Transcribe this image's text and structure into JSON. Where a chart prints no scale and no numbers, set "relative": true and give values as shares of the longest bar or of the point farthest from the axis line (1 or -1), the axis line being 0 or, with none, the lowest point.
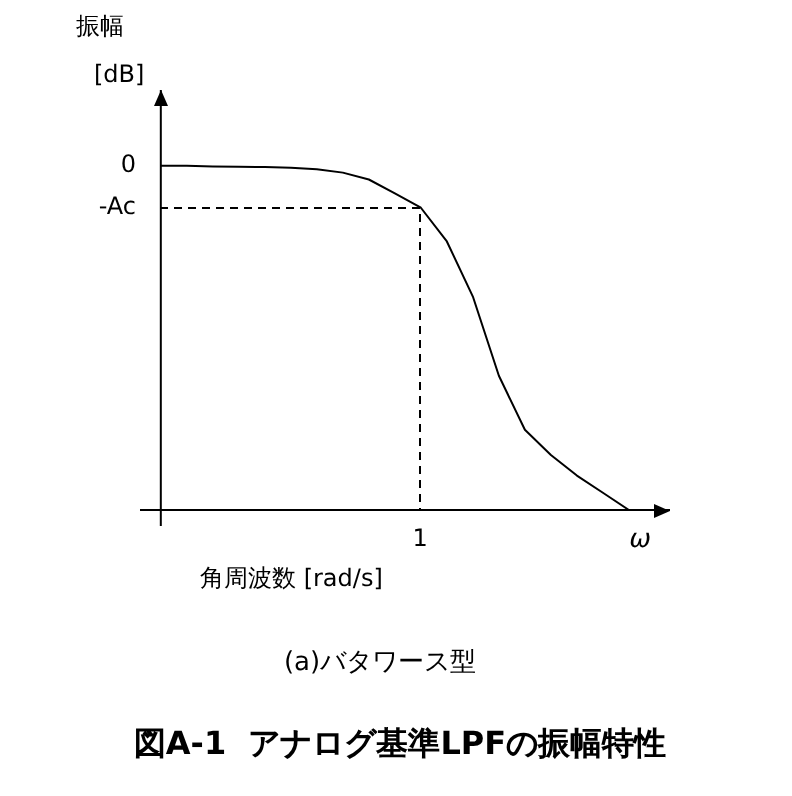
{
  "chart_data": {
    "type": "line",
    "relative": true,
    "title": "図A-1  アナログ基準LPFの振幅特性",
    "subtitle": "(a)バタワース型",
    "xlabel": "角周波数 [rad/s]",
    "ylabel": "振幅 [dB]",
    "categories": [
      null,
      null,
      null,
      null,
      null,
      null,
      null,
      null,
      null,
      null,
      null,
      null,
      null,
      null,
      null,
      null,
      null,
      null,
      null
    ],
    "values": [
      1,
      1,
      0.998,
      0.997,
      0.996,
      0.994,
      0.99,
      0.98,
      0.96,
      0.92,
      0.878,
      0.78,
      0.62,
      0.39,
      0.233,
      0.16,
      0.1,
      0.05,
      0
    ],
    "color": "#000000",
    "marker": "none",
    "line_style": "solid",
    "annotations": [
      "0",
      "-Ac",
      "1",
      "ω"
    ]
  }
}
